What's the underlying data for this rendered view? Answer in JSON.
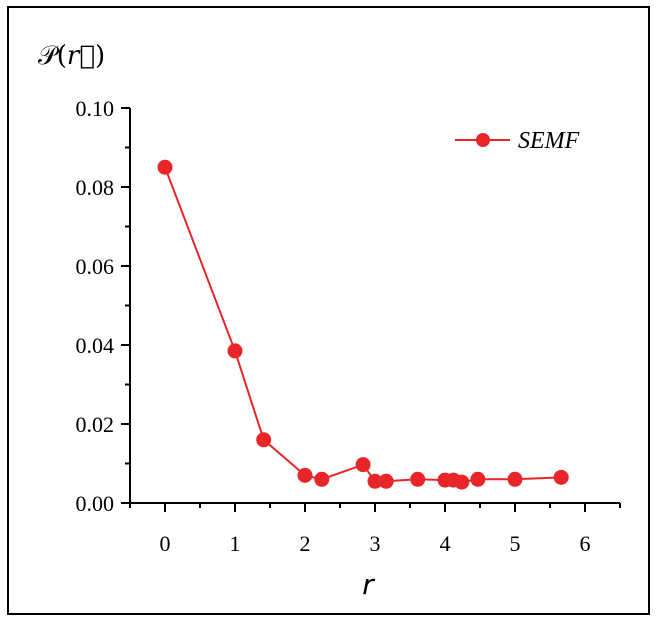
{
  "chart_data": {
    "type": "line",
    "ylabel_base": "𝒫",
    "ylabel_arg": "r⃗",
    "xlabel": "r",
    "xlim": [
      -0.5,
      6.5
    ],
    "ylim": [
      0.0,
      0.1
    ],
    "xticks": [
      "0",
      "1",
      "2",
      "3",
      "4",
      "5",
      "6"
    ],
    "yticks": [
      "0.00",
      "0.02",
      "0.04",
      "0.06",
      "0.08",
      "0.10"
    ],
    "legend_position": "top-right",
    "colors": {
      "series": "#e8262a"
    },
    "series": [
      {
        "name": "SEMF",
        "x": [
          0,
          1,
          1.41,
          2,
          2.24,
          2.83,
          3,
          3.16,
          3.61,
          4,
          4.12,
          4.24,
          4.47,
          5,
          5.66
        ],
        "y": [
          0.085,
          0.0385,
          0.016,
          0.007,
          0.006,
          0.0097,
          0.0055,
          0.0055,
          0.006,
          0.0058,
          0.0058,
          0.0053,
          0.006,
          0.006,
          0.0065
        ]
      }
    ]
  }
}
